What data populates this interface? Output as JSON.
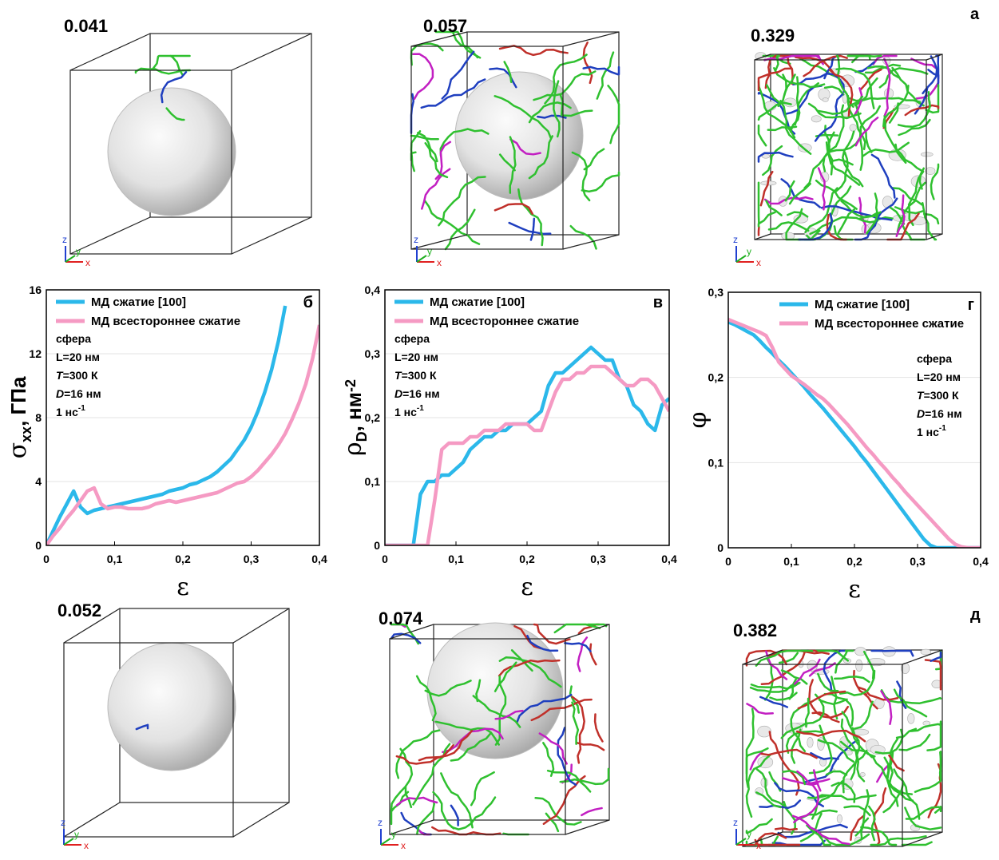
{
  "figure": {
    "panel_top": "а",
    "panel_bottom": "д"
  },
  "renders": [
    {
      "label": "0.041"
    },
    {
      "label": "0.057"
    },
    {
      "label": "0.329"
    },
    {
      "label": "0.052"
    },
    {
      "label": "0.074"
    },
    {
      "label": "0.382"
    }
  ],
  "triad": {
    "x": "x",
    "y": "y",
    "z": "z"
  },
  "chart_data": [
    {
      "type": "line",
      "panel_label": "б",
      "ylabel": [
        {
          "text": "σ",
          "symbol": true
        },
        {
          "text": "xx",
          "sub": true
        },
        {
          "text": ", ГПа"
        }
      ],
      "xlabel": "ε",
      "x": [
        0,
        0.01,
        0.02,
        0.03,
        0.04,
        0.05,
        0.06,
        0.07,
        0.08,
        0.09,
        0.1,
        0.11,
        0.12,
        0.13,
        0.14,
        0.15,
        0.16,
        0.17,
        0.18,
        0.19,
        0.2,
        0.21,
        0.22,
        0.23,
        0.24,
        0.25,
        0.26,
        0.27,
        0.28,
        0.29,
        0.3,
        0.31,
        0.32,
        0.33,
        0.34,
        0.35,
        0.36,
        0.37,
        0.38,
        0.39,
        0.4
      ],
      "xlim": [
        0,
        0.4
      ],
      "xticks": [
        0,
        {
          "value": 0.1,
          "label": "0,1"
        },
        {
          "value": 0.2,
          "label": "0,2"
        },
        {
          "value": 0.3,
          "label": "0,3"
        },
        {
          "value": 0.4,
          "label": "0,4"
        }
      ],
      "ylim": [
        0,
        16
      ],
      "yticks": [
        0,
        4,
        8,
        12,
        16
      ],
      "grid": true,
      "legend": "upper left",
      "annotation": [
        [
          {
            "text": "сфера"
          }
        ],
        [
          {
            "text": "L=20 нм"
          }
        ],
        [
          {
            "text": "T",
            "italic": true
          },
          {
            "text": "=300 К"
          }
        ],
        [
          {
            "text": "D",
            "italic": true
          },
          {
            "text": "=16 нм"
          }
        ],
        [
          {
            "text": "1 нс"
          },
          {
            "text": "-1",
            "sup": true
          }
        ]
      ],
      "series": [
        {
          "name": "МД сжатие [100]",
          "color": "#2bb8ea",
          "values": [
            0,
            0.9,
            1.8,
            2.6,
            3.4,
            2.4,
            2.0,
            2.2,
            2.3,
            2.4,
            2.5,
            2.6,
            2.7,
            2.8,
            2.9,
            3.0,
            3.1,
            3.2,
            3.4,
            3.5,
            3.6,
            3.8,
            3.9,
            4.1,
            4.3,
            4.6,
            5.0,
            5.4,
            6.0,
            6.6,
            7.4,
            8.4,
            9.6,
            11.0,
            12.8,
            15.0,
            null,
            null,
            null,
            null,
            null
          ]
        },
        {
          "name": "МД всестороннее сжатие",
          "color": "#f59ac3",
          "values": [
            0,
            0.6,
            1.1,
            1.7,
            2.2,
            2.8,
            3.4,
            3.6,
            2.6,
            2.3,
            2.4,
            2.4,
            2.3,
            2.3,
            2.3,
            2.4,
            2.6,
            2.7,
            2.8,
            2.7,
            2.8,
            2.9,
            3.0,
            3.1,
            3.2,
            3.3,
            3.5,
            3.7,
            3.9,
            4.0,
            4.3,
            4.7,
            5.2,
            5.7,
            6.3,
            7.0,
            7.9,
            8.9,
            10.1,
            11.7,
            13.8
          ]
        }
      ]
    },
    {
      "type": "line",
      "panel_label": "в",
      "ylabel": [
        {
          "text": "ρ",
          "symbol": true
        },
        {
          "text": "D",
          "sub": true
        },
        {
          "text": ", нм"
        },
        {
          "text": "-2",
          "sup": true
        }
      ],
      "xlabel": "ε",
      "x": [
        0,
        0.01,
        0.02,
        0.03,
        0.04,
        0.05,
        0.06,
        0.07,
        0.08,
        0.09,
        0.1,
        0.11,
        0.12,
        0.13,
        0.14,
        0.15,
        0.16,
        0.17,
        0.18,
        0.19,
        0.2,
        0.21,
        0.22,
        0.23,
        0.24,
        0.25,
        0.26,
        0.27,
        0.28,
        0.29,
        0.3,
        0.31,
        0.32,
        0.33,
        0.34,
        0.35,
        0.36,
        0.37,
        0.38,
        0.39,
        0.4
      ],
      "xlim": [
        0,
        0.4
      ],
      "xticks": [
        0,
        {
          "value": 0.1,
          "label": "0,1"
        },
        {
          "value": 0.2,
          "label": "0,2"
        },
        {
          "value": 0.3,
          "label": "0,3"
        },
        {
          "value": 0.4,
          "label": "0,4"
        }
      ],
      "ylim": [
        0,
        0.4
      ],
      "yticks": [
        0,
        {
          "value": 0.1,
          "label": "0,1"
        },
        {
          "value": 0.2,
          "label": "0,2"
        },
        {
          "value": 0.3,
          "label": "0,3"
        },
        {
          "value": 0.4,
          "label": "0,4"
        }
      ],
      "grid": true,
      "legend": "upper left",
      "annotation": [
        [
          {
            "text": "сфера"
          }
        ],
        [
          {
            "text": "L=20 нм"
          }
        ],
        [
          {
            "text": "T",
            "italic": true
          },
          {
            "text": "=300 К"
          }
        ],
        [
          {
            "text": "D",
            "italic": true
          },
          {
            "text": "=16 нм"
          }
        ],
        [
          {
            "text": "1 нс"
          },
          {
            "text": "-1",
            "sup": true
          }
        ]
      ],
      "series": [
        {
          "name": "МД сжатие [100]",
          "color": "#2bb8ea",
          "values": [
            0,
            0,
            0,
            0,
            0,
            0.08,
            0.1,
            0.1,
            0.11,
            0.11,
            0.12,
            0.13,
            0.15,
            0.16,
            0.17,
            0.17,
            0.18,
            0.18,
            0.19,
            0.19,
            0.19,
            0.2,
            0.21,
            0.25,
            0.27,
            0.27,
            0.28,
            0.29,
            0.3,
            0.31,
            0.3,
            0.29,
            0.29,
            0.26,
            0.25,
            0.22,
            0.21,
            0.19,
            0.18,
            0.22,
            0.23
          ]
        },
        {
          "name": "МД всестороннее сжатие",
          "color": "#f59ac3",
          "values": [
            0,
            0,
            0,
            0,
            0,
            0,
            0,
            0.07,
            0.15,
            0.16,
            0.16,
            0.16,
            0.17,
            0.17,
            0.18,
            0.18,
            0.18,
            0.19,
            0.19,
            0.19,
            0.19,
            0.18,
            0.18,
            0.21,
            0.24,
            0.26,
            0.26,
            0.27,
            0.27,
            0.28,
            0.28,
            0.28,
            0.27,
            0.26,
            0.25,
            0.25,
            0.26,
            0.26,
            0.25,
            0.23,
            0.21
          ]
        }
      ]
    },
    {
      "type": "line",
      "panel_label": "г",
      "ylabel": [
        {
          "text": "φ",
          "symbol": true
        }
      ],
      "xlabel": "ε",
      "x": [
        0,
        0.01,
        0.02,
        0.03,
        0.04,
        0.05,
        0.06,
        0.07,
        0.08,
        0.09,
        0.1,
        0.11,
        0.12,
        0.13,
        0.14,
        0.15,
        0.16,
        0.17,
        0.18,
        0.19,
        0.2,
        0.21,
        0.22,
        0.23,
        0.24,
        0.25,
        0.26,
        0.27,
        0.28,
        0.29,
        0.3,
        0.31,
        0.32,
        0.33,
        0.34,
        0.35,
        0.36,
        0.37,
        0.38,
        0.39,
        0.4
      ],
      "xlim": [
        0,
        0.4
      ],
      "xticks": [
        0,
        {
          "value": 0.1,
          "label": "0,1"
        },
        {
          "value": 0.2,
          "label": "0,2"
        },
        {
          "value": 0.3,
          "label": "0,3"
        },
        {
          "value": 0.4,
          "label": "0,4"
        }
      ],
      "ylim": [
        0,
        0.3
      ],
      "yticks": [
        0,
        {
          "value": 0.1,
          "label": "0,1"
        },
        {
          "value": 0.2,
          "label": "0,2"
        },
        {
          "value": 0.3,
          "label": "0,3"
        }
      ],
      "grid": true,
      "legend": "upper right",
      "annotation": [
        [
          {
            "text": "сфера"
          }
        ],
        [
          {
            "text": "L=20 нм"
          }
        ],
        [
          {
            "text": "T",
            "italic": true
          },
          {
            "text": "=300 К"
          }
        ],
        [
          {
            "text": "D",
            "italic": true
          },
          {
            "text": "=16 нм"
          }
        ],
        [
          {
            "text": "1 нс"
          },
          {
            "text": "-1",
            "sup": true
          }
        ]
      ],
      "series": [
        {
          "name": "МД сжатие [100]",
          "color": "#2bb8ea",
          "values": [
            0.265,
            0.262,
            0.258,
            0.254,
            0.25,
            0.243,
            0.235,
            0.228,
            0.22,
            0.213,
            0.205,
            0.197,
            0.189,
            0.18,
            0.172,
            0.164,
            0.155,
            0.146,
            0.137,
            0.128,
            0.119,
            0.109,
            0.1,
            0.09,
            0.08,
            0.07,
            0.06,
            0.05,
            0.04,
            0.03,
            0.02,
            0.01,
            0.003,
            0,
            0,
            0,
            0,
            0,
            0,
            0,
            0
          ]
        },
        {
          "name": "МД всестороннее сжатие",
          "color": "#f59ac3",
          "values": [
            0.268,
            0.265,
            0.262,
            0.259,
            0.256,
            0.253,
            0.249,
            0.235,
            0.218,
            0.21,
            0.202,
            0.197,
            0.192,
            0.186,
            0.18,
            0.175,
            0.168,
            0.16,
            0.152,
            0.144,
            0.135,
            0.126,
            0.117,
            0.109,
            0.1,
            0.092,
            0.083,
            0.075,
            0.066,
            0.058,
            0.05,
            0.042,
            0.034,
            0.026,
            0.018,
            0.01,
            0.004,
            0.001,
            0,
            0,
            0
          ]
        }
      ]
    }
  ]
}
